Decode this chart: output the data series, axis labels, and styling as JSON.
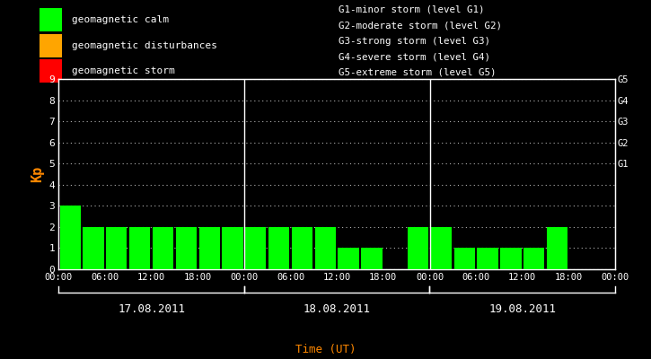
{
  "bg_color": "#000000",
  "bar_color_calm": "#00ff00",
  "bar_color_disturb": "#ffa500",
  "bar_color_storm": "#ff0000",
  "ylabel": "Kp",
  "xlabel": "Time (UT)",
  "ylabel_color": "#ff8800",
  "xlabel_color": "#ff8800",
  "ytick_color": "#ffffff",
  "xtick_color": "#ffffff",
  "grid_color": "#ffffff",
  "ylim": [
    0,
    9
  ],
  "days": [
    "17.08.2011",
    "18.08.2011",
    "19.08.2011"
  ],
  "kp_values": [
    3,
    2,
    2,
    2,
    2,
    2,
    2,
    2,
    2,
    2,
    2,
    2,
    1,
    1,
    0,
    2,
    2,
    1,
    1,
    1,
    1,
    2,
    0
  ],
  "legend_items": [
    {
      "label": "geomagnetic calm",
      "color": "#00ff00"
    },
    {
      "label": "geomagnetic disturbances",
      "color": "#ffa500"
    },
    {
      "label": "geomagnetic storm",
      "color": "#ff0000"
    }
  ],
  "right_legend": [
    "G1-minor storm (level G1)",
    "G2-moderate storm (level G2)",
    "G3-strong storm (level G3)",
    "G4-severe storm (level G4)",
    "G5-extreme storm (level G5)"
  ],
  "right_ytick_labels": [
    "G1",
    "G2",
    "G3",
    "G4",
    "G5"
  ],
  "right_ytick_values": [
    5,
    6,
    7,
    8,
    9
  ]
}
